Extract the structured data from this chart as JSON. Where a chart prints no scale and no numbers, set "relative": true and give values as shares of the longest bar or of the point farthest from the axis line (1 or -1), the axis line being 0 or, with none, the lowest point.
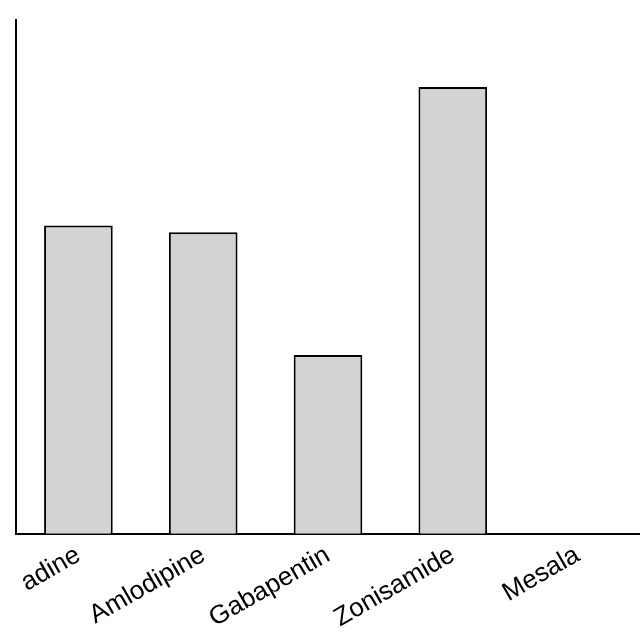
{
  "chart_data": {
    "type": "bar",
    "relative": true,
    "categories": [
      "adine",
      "Amlodipine",
      "Gabapentin",
      "Zonisamide",
      "Mesala"
    ],
    "series": [
      {
        "color": "#d3d3d3",
        "values": [
          0.69,
          0.675,
          0.4,
          1,
          null
        ]
      }
    ],
    "grid": false,
    "legend": false
  }
}
